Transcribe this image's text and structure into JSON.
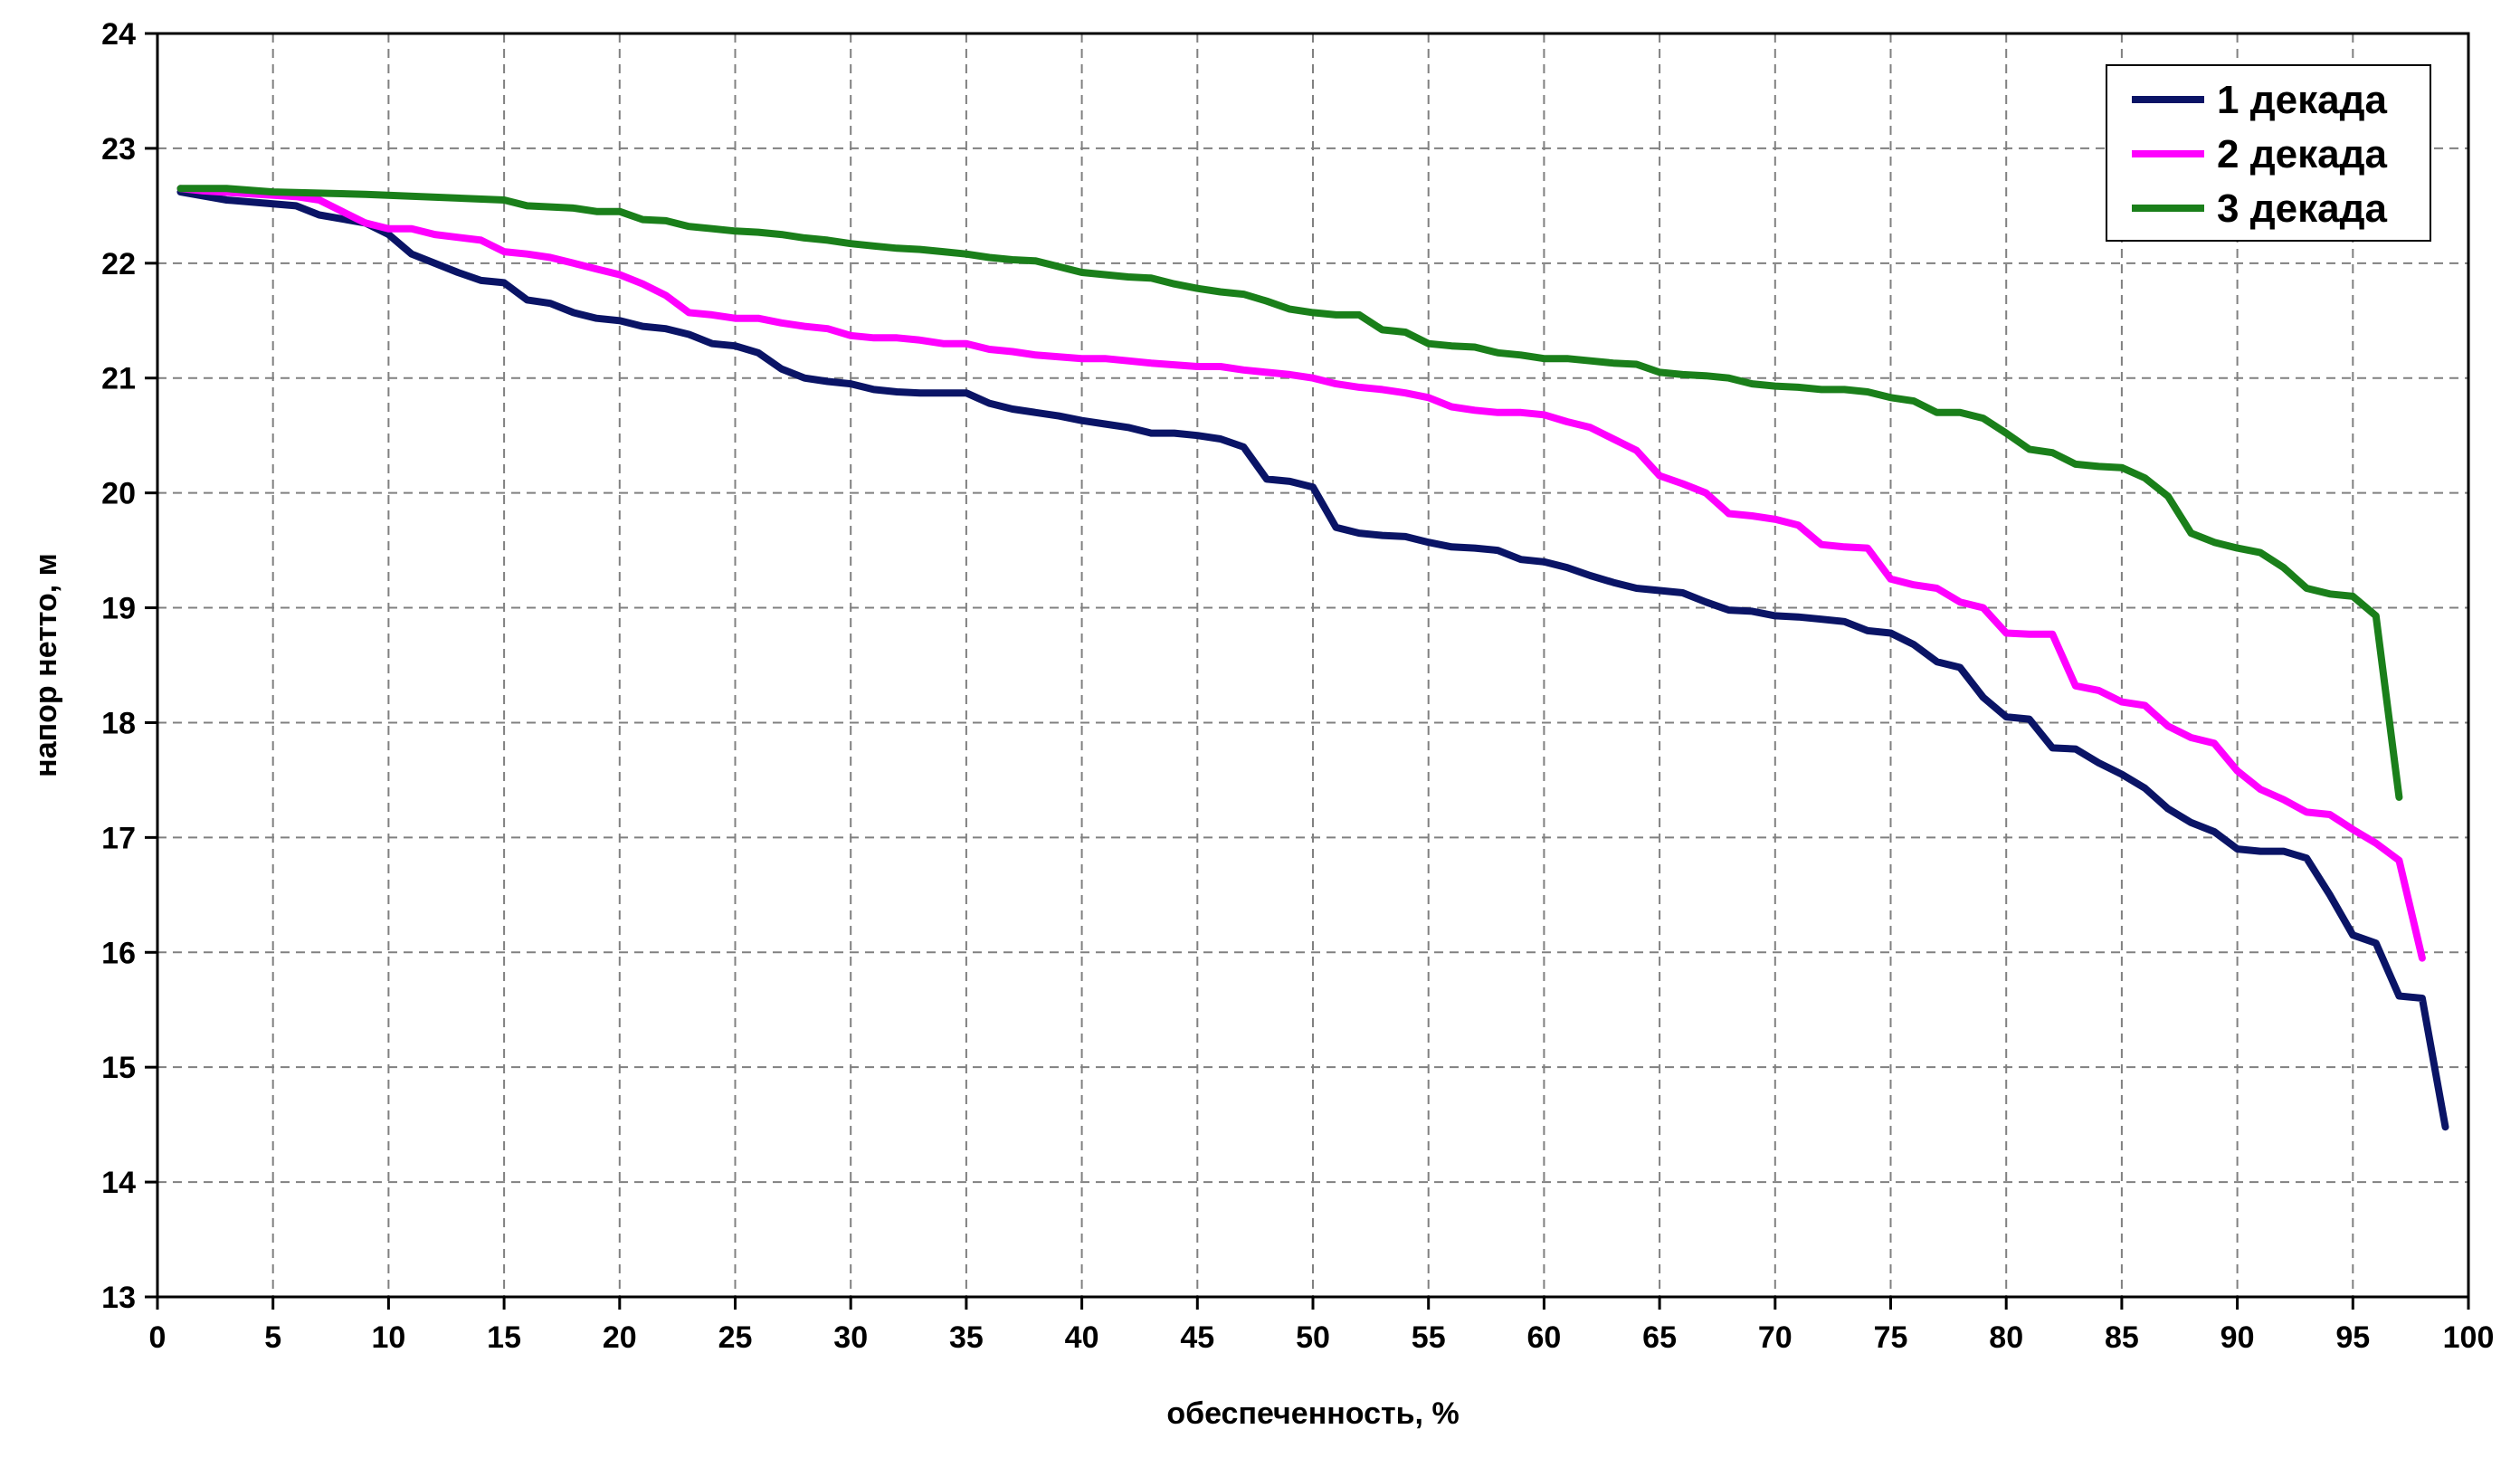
{
  "chart_data": {
    "type": "line",
    "title": "",
    "xlabel": "обеспеченность, %",
    "ylabel": "напор нетто, м",
    "xlim": [
      0,
      100
    ],
    "ylim": [
      13,
      24
    ],
    "x_ticks": [
      0,
      5,
      10,
      15,
      20,
      25,
      30,
      35,
      40,
      45,
      50,
      55,
      60,
      65,
      70,
      75,
      80,
      85,
      90,
      95,
      100
    ],
    "y_ticks": [
      13,
      14,
      15,
      16,
      17,
      18,
      19,
      20,
      21,
      22,
      23,
      24
    ],
    "x_tick_labels": [
      "0",
      "5",
      "10",
      "15",
      "20",
      "25",
      "30",
      "35",
      "40",
      "45",
      "50",
      "55",
      "60",
      "65",
      "70",
      "75",
      "80",
      "85",
      "90",
      "95",
      "100"
    ],
    "y_tick_labels": [
      "13",
      "14",
      "15",
      "16",
      "17",
      "18",
      "19",
      "20",
      "21",
      "22",
      "23",
      "24"
    ],
    "grid": true,
    "legend_position": "top-right",
    "series": [
      {
        "name": "1 декада",
        "color": "#0a1466",
        "points": [
          [
            1,
            22.62
          ],
          [
            3,
            22.55
          ],
          [
            6,
            22.5
          ],
          [
            7,
            22.42
          ],
          [
            9,
            22.35
          ],
          [
            10,
            22.25
          ],
          [
            11,
            22.08
          ],
          [
            13,
            21.92
          ],
          [
            14,
            21.85
          ],
          [
            15,
            21.83
          ],
          [
            16,
            21.68
          ],
          [
            17,
            21.65
          ],
          [
            18,
            21.57
          ],
          [
            19,
            21.52
          ],
          [
            20,
            21.5
          ],
          [
            21,
            21.45
          ],
          [
            22,
            21.43
          ],
          [
            23,
            21.38
          ],
          [
            24,
            21.3
          ],
          [
            25,
            21.28
          ],
          [
            26,
            21.22
          ],
          [
            27,
            21.08
          ],
          [
            28,
            21.0
          ],
          [
            29,
            20.97
          ],
          [
            30,
            20.95
          ],
          [
            31,
            20.9
          ],
          [
            32,
            20.88
          ],
          [
            33,
            20.87
          ],
          [
            34,
            20.87
          ],
          [
            35,
            20.87
          ],
          [
            36,
            20.78
          ],
          [
            37,
            20.73
          ],
          [
            38,
            20.7
          ],
          [
            39,
            20.67
          ],
          [
            40,
            20.63
          ],
          [
            41,
            20.6
          ],
          [
            42,
            20.57
          ],
          [
            43,
            20.52
          ],
          [
            44,
            20.52
          ],
          [
            45,
            20.5
          ],
          [
            46,
            20.47
          ],
          [
            47,
            20.4
          ],
          [
            48,
            20.12
          ],
          [
            49,
            20.1
          ],
          [
            50,
            20.05
          ],
          [
            51,
            19.7
          ],
          [
            52,
            19.65
          ],
          [
            53,
            19.63
          ],
          [
            54,
            19.62
          ],
          [
            55,
            19.57
          ],
          [
            56,
            19.53
          ],
          [
            57,
            19.52
          ],
          [
            58,
            19.5
          ],
          [
            59,
            19.42
          ],
          [
            60,
            19.4
          ],
          [
            61,
            19.35
          ],
          [
            62,
            19.28
          ],
          [
            63,
            19.22
          ],
          [
            64,
            19.17
          ],
          [
            65,
            19.15
          ],
          [
            66,
            19.13
          ],
          [
            67,
            19.05
          ],
          [
            68,
            18.98
          ],
          [
            69,
            18.97
          ],
          [
            70,
            18.93
          ],
          [
            71,
            18.92
          ],
          [
            72,
            18.9
          ],
          [
            73,
            18.88
          ],
          [
            74,
            18.8
          ],
          [
            75,
            18.78
          ],
          [
            76,
            18.68
          ],
          [
            77,
            18.53
          ],
          [
            78,
            18.48
          ],
          [
            79,
            18.22
          ],
          [
            80,
            18.05
          ],
          [
            81,
            18.03
          ],
          [
            82,
            17.78
          ],
          [
            83,
            17.77
          ],
          [
            84,
            17.65
          ],
          [
            85,
            17.55
          ],
          [
            86,
            17.43
          ],
          [
            87,
            17.25
          ],
          [
            88,
            17.13
          ],
          [
            89,
            17.05
          ],
          [
            90,
            16.9
          ],
          [
            91,
            16.88
          ],
          [
            92,
            16.88
          ],
          [
            93,
            16.82
          ],
          [
            94,
            16.5
          ],
          [
            95,
            16.15
          ],
          [
            96,
            16.08
          ],
          [
            97,
            15.62
          ],
          [
            98,
            15.6
          ],
          [
            99,
            14.48
          ]
        ]
      },
      {
        "name": "2 декада",
        "color": "#ff00ff",
        "points": [
          [
            1,
            22.65
          ],
          [
            2,
            22.63
          ],
          [
            6,
            22.58
          ],
          [
            7,
            22.55
          ],
          [
            8,
            22.45
          ],
          [
            9,
            22.35
          ],
          [
            10,
            22.3
          ],
          [
            11,
            22.3
          ],
          [
            12,
            22.25
          ],
          [
            14,
            22.2
          ],
          [
            15,
            22.1
          ],
          [
            16,
            22.08
          ],
          [
            17,
            22.05
          ],
          [
            18,
            22.0
          ],
          [
            19,
            21.95
          ],
          [
            20,
            21.9
          ],
          [
            21,
            21.82
          ],
          [
            22,
            21.72
          ],
          [
            23,
            21.57
          ],
          [
            24,
            21.55
          ],
          [
            25,
            21.52
          ],
          [
            26,
            21.52
          ],
          [
            27,
            21.48
          ],
          [
            28,
            21.45
          ],
          [
            29,
            21.43
          ],
          [
            30,
            21.37
          ],
          [
            31,
            21.35
          ],
          [
            32,
            21.35
          ],
          [
            33,
            21.33
          ],
          [
            34,
            21.3
          ],
          [
            35,
            21.3
          ],
          [
            36,
            21.25
          ],
          [
            37,
            21.23
          ],
          [
            38,
            21.2
          ],
          [
            40,
            21.17
          ],
          [
            41,
            21.17
          ],
          [
            42,
            21.15
          ],
          [
            43,
            21.13
          ],
          [
            45,
            21.1
          ],
          [
            46,
            21.1
          ],
          [
            47,
            21.07
          ],
          [
            48,
            21.05
          ],
          [
            49,
            21.03
          ],
          [
            50,
            21.0
          ],
          [
            51,
            20.95
          ],
          [
            52,
            20.92
          ],
          [
            53,
            20.9
          ],
          [
            54,
            20.87
          ],
          [
            55,
            20.83
          ],
          [
            56,
            20.75
          ],
          [
            57,
            20.72
          ],
          [
            58,
            20.7
          ],
          [
            59,
            20.7
          ],
          [
            60,
            20.68
          ],
          [
            61,
            20.62
          ],
          [
            62,
            20.57
          ],
          [
            63,
            20.47
          ],
          [
            64,
            20.37
          ],
          [
            65,
            20.15
          ],
          [
            66,
            20.08
          ],
          [
            67,
            20.0
          ],
          [
            68,
            19.82
          ],
          [
            69,
            19.8
          ],
          [
            70,
            19.77
          ],
          [
            71,
            19.72
          ],
          [
            72,
            19.55
          ],
          [
            73,
            19.53
          ],
          [
            74,
            19.52
          ],
          [
            75,
            19.25
          ],
          [
            76,
            19.2
          ],
          [
            77,
            19.17
          ],
          [
            78,
            19.05
          ],
          [
            79,
            19.0
          ],
          [
            80,
            18.78
          ],
          [
            81,
            18.77
          ],
          [
            82,
            18.77
          ],
          [
            83,
            18.32
          ],
          [
            84,
            18.28
          ],
          [
            85,
            18.18
          ],
          [
            86,
            18.15
          ],
          [
            87,
            17.97
          ],
          [
            88,
            17.87
          ],
          [
            89,
            17.82
          ],
          [
            90,
            17.58
          ],
          [
            91,
            17.42
          ],
          [
            92,
            17.33
          ],
          [
            93,
            17.22
          ],
          [
            94,
            17.2
          ],
          [
            95,
            17.07
          ],
          [
            96,
            16.95
          ],
          [
            97,
            16.8
          ],
          [
            98,
            15.95
          ]
        ]
      },
      {
        "name": "3 декада",
        "color": "#1a7f1a",
        "points": [
          [
            1,
            22.65
          ],
          [
            3,
            22.65
          ],
          [
            5,
            22.62
          ],
          [
            9,
            22.6
          ],
          [
            15,
            22.55
          ],
          [
            16,
            22.5
          ],
          [
            18,
            22.48
          ],
          [
            19,
            22.45
          ],
          [
            20,
            22.45
          ],
          [
            21,
            22.38
          ],
          [
            22,
            22.37
          ],
          [
            23,
            22.32
          ],
          [
            24,
            22.3
          ],
          [
            25,
            22.28
          ],
          [
            26,
            22.27
          ],
          [
            27,
            22.25
          ],
          [
            28,
            22.22
          ],
          [
            29,
            22.2
          ],
          [
            30,
            22.17
          ],
          [
            31,
            22.15
          ],
          [
            32,
            22.13
          ],
          [
            33,
            22.12
          ],
          [
            34,
            22.1
          ],
          [
            35,
            22.08
          ],
          [
            36,
            22.05
          ],
          [
            37,
            22.03
          ],
          [
            38,
            22.02
          ],
          [
            39,
            21.97
          ],
          [
            40,
            21.92
          ],
          [
            41,
            21.9
          ],
          [
            42,
            21.88
          ],
          [
            43,
            21.87
          ],
          [
            44,
            21.82
          ],
          [
            45,
            21.78
          ],
          [
            46,
            21.75
          ],
          [
            47,
            21.73
          ],
          [
            48,
            21.67
          ],
          [
            49,
            21.6
          ],
          [
            50,
            21.57
          ],
          [
            51,
            21.55
          ],
          [
            52,
            21.55
          ],
          [
            53,
            21.42
          ],
          [
            54,
            21.4
          ],
          [
            55,
            21.3
          ],
          [
            56,
            21.28
          ],
          [
            57,
            21.27
          ],
          [
            58,
            21.22
          ],
          [
            59,
            21.2
          ],
          [
            60,
            21.17
          ],
          [
            61,
            21.17
          ],
          [
            62,
            21.15
          ],
          [
            63,
            21.13
          ],
          [
            64,
            21.12
          ],
          [
            65,
            21.05
          ],
          [
            66,
            21.03
          ],
          [
            67,
            21.02
          ],
          [
            68,
            21.0
          ],
          [
            69,
            20.95
          ],
          [
            70,
            20.93
          ],
          [
            71,
            20.92
          ],
          [
            72,
            20.9
          ],
          [
            73,
            20.9
          ],
          [
            74,
            20.88
          ],
          [
            75,
            20.83
          ],
          [
            76,
            20.8
          ],
          [
            77,
            20.7
          ],
          [
            78,
            20.7
          ],
          [
            79,
            20.65
          ],
          [
            80,
            20.52
          ],
          [
            81,
            20.38
          ],
          [
            82,
            20.35
          ],
          [
            83,
            20.25
          ],
          [
            84,
            20.23
          ],
          [
            85,
            20.22
          ],
          [
            86,
            20.13
          ],
          [
            87,
            19.97
          ],
          [
            88,
            19.65
          ],
          [
            89,
            19.57
          ],
          [
            90,
            19.52
          ],
          [
            91,
            19.48
          ],
          [
            92,
            19.35
          ],
          [
            93,
            19.17
          ],
          [
            94,
            19.12
          ],
          [
            95,
            19.1
          ],
          [
            96,
            18.93
          ],
          [
            97,
            17.35
          ]
        ]
      }
    ]
  }
}
